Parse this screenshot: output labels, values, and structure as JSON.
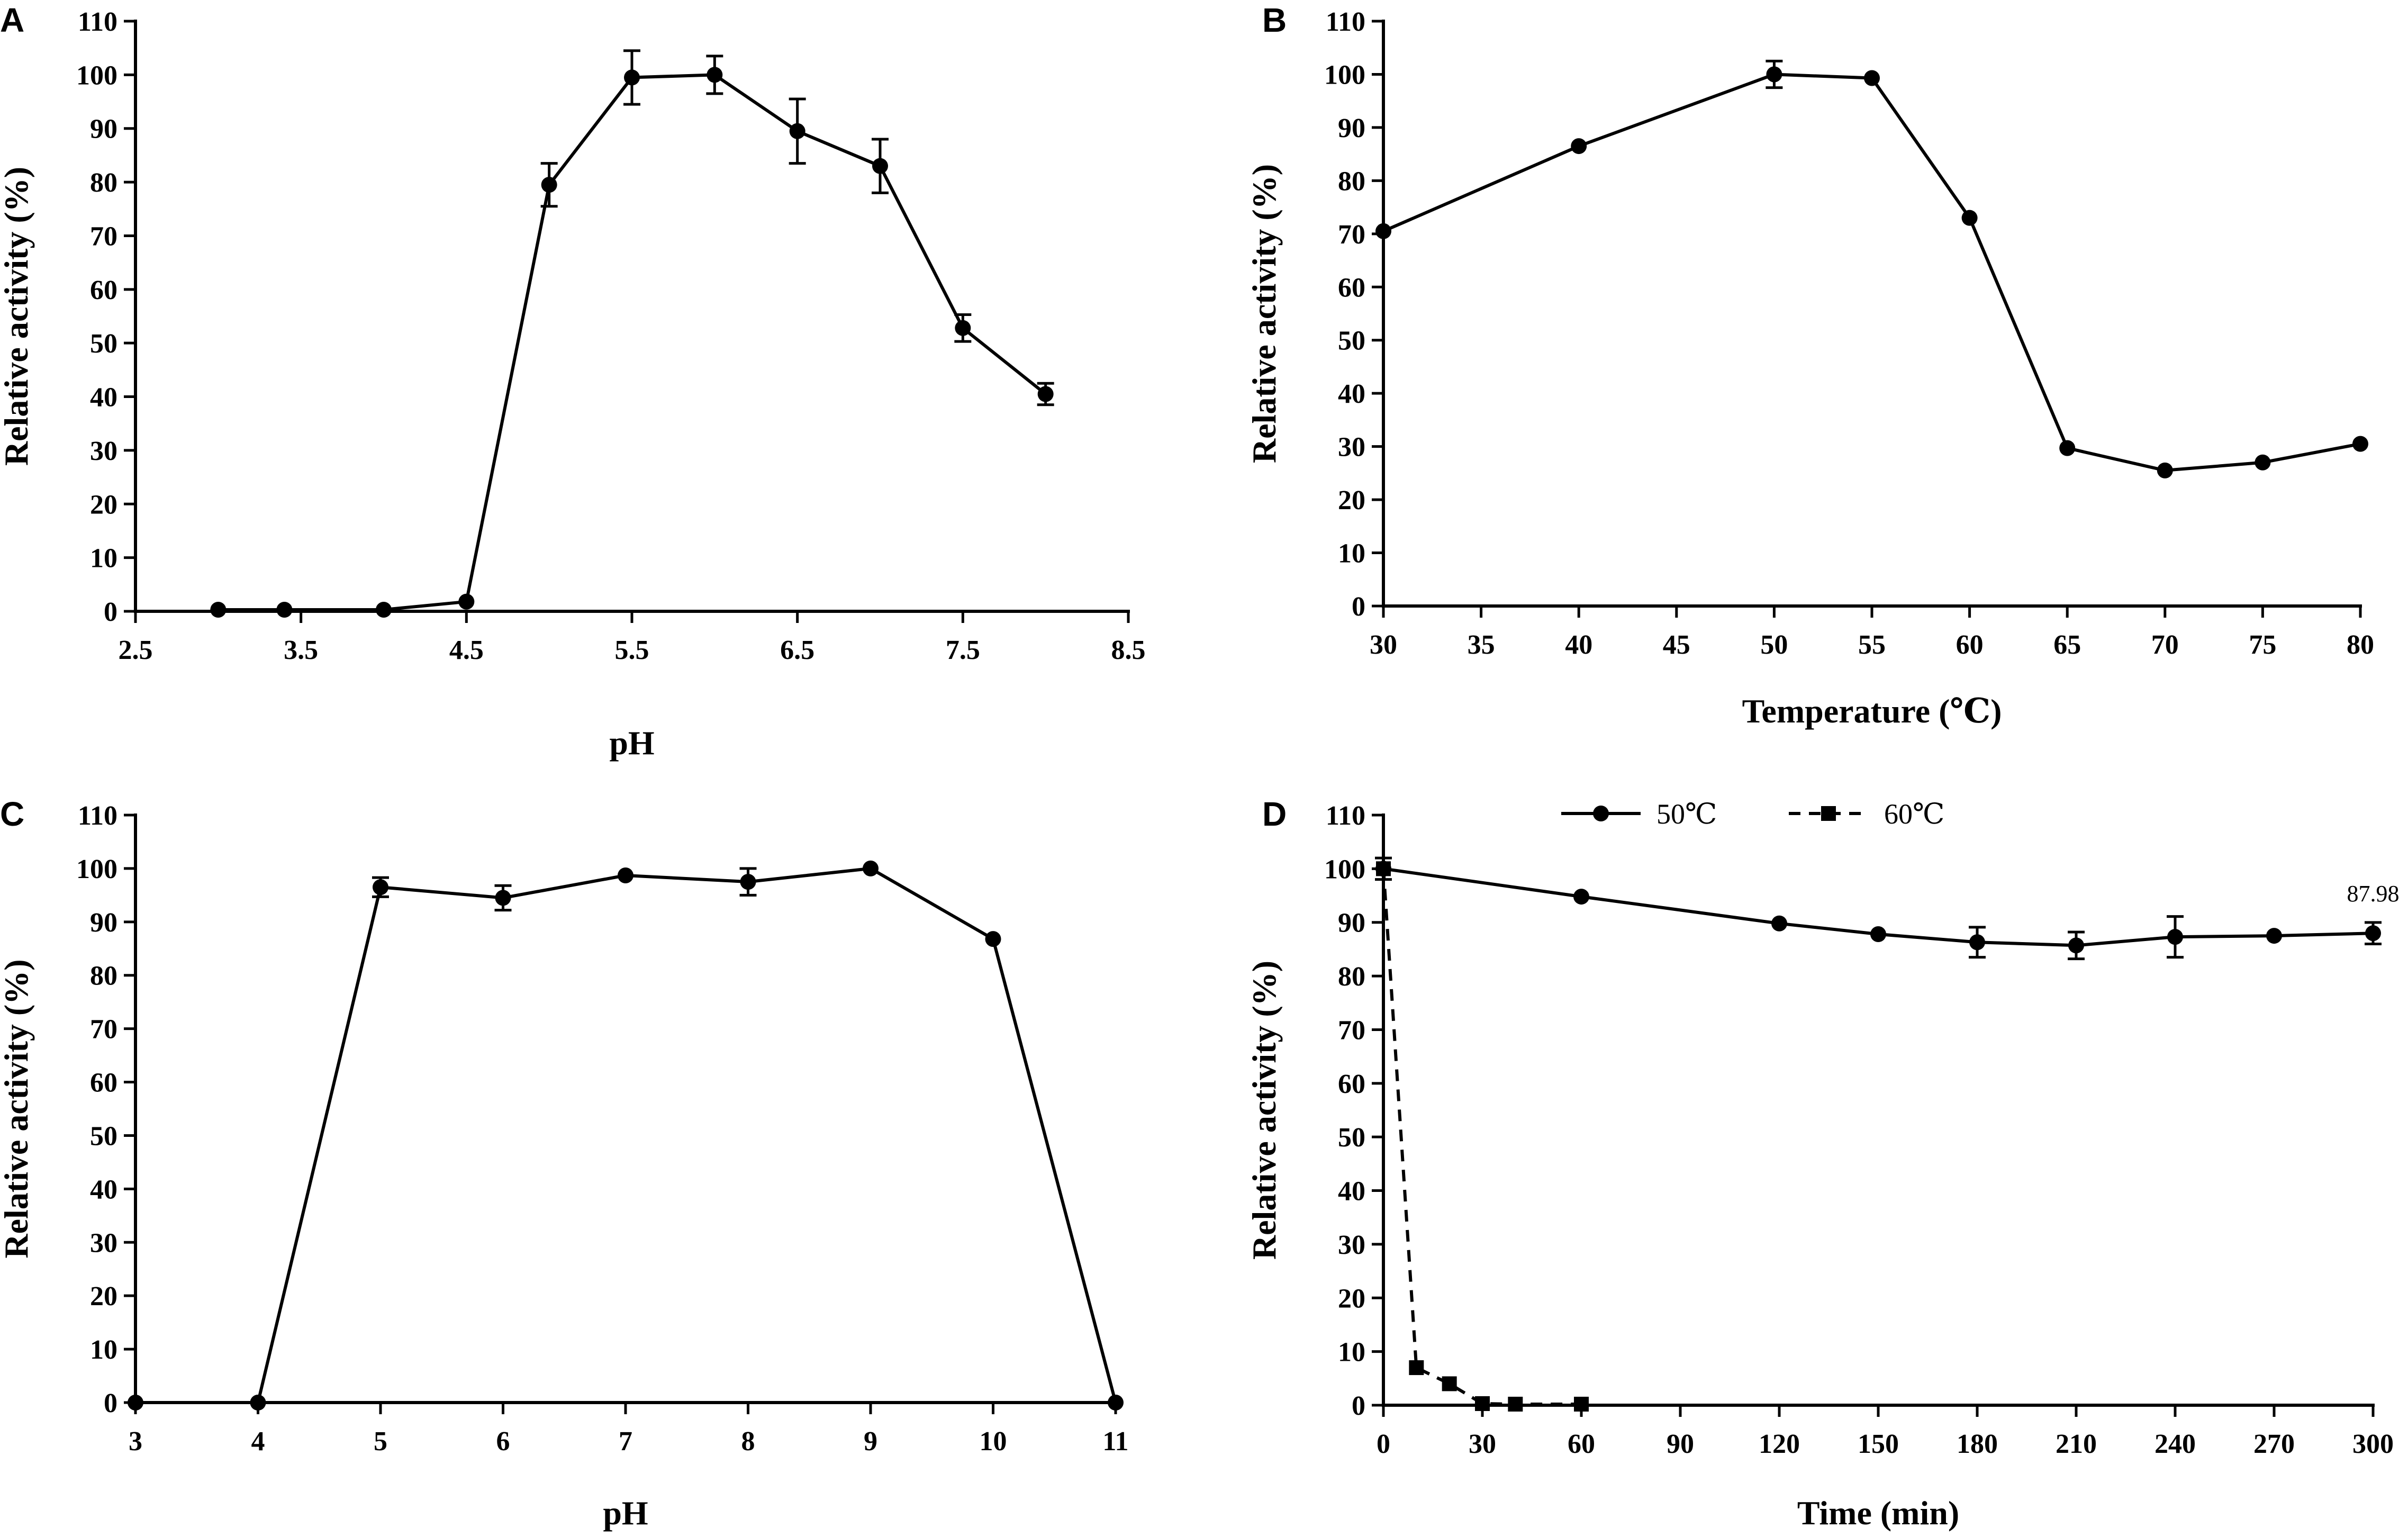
{
  "chart_data": [
    {
      "panel": "A",
      "type": "line",
      "xlabel": "pH",
      "ylabel": "Relative  activity (%)",
      "xlim": [
        2.5,
        8.5
      ],
      "ylim": [
        0,
        110
      ],
      "xticks": [
        2.5,
        3.5,
        4.5,
        5.5,
        6.5,
        7.5,
        8.5
      ],
      "xtick_labels": [
        "2.5",
        "3.5",
        "4.5",
        "5.5",
        "6.5",
        "7.5",
        "8.5"
      ],
      "yticks": [
        0,
        10,
        20,
        30,
        40,
        50,
        60,
        70,
        80,
        90,
        100,
        110
      ],
      "series": [
        {
          "name": "activity",
          "marker": "circle",
          "dashed": false,
          "x": [
            3.0,
            3.4,
            4.0,
            4.5,
            5.0,
            5.5,
            6.0,
            6.5,
            7.0,
            7.5,
            8.0
          ],
          "y": [
            0.3,
            0.3,
            0.3,
            1.8,
            79.5,
            99.5,
            100.0,
            89.5,
            83.0,
            52.8,
            40.5
          ],
          "err": [
            0,
            0,
            0,
            0,
            4,
            5,
            3.5,
            6,
            5,
            2.5,
            2
          ]
        }
      ]
    },
    {
      "panel": "B",
      "type": "line",
      "xlabel": "Temperature (℃)",
      "ylabel": "Relative  activity (%)",
      "xlim": [
        30,
        80
      ],
      "ylim": [
        0,
        110
      ],
      "xticks": [
        30,
        35,
        40,
        45,
        50,
        55,
        60,
        65,
        70,
        75,
        80
      ],
      "xtick_labels": [
        "30",
        "35",
        "40",
        "45",
        "50",
        "55",
        "60",
        "65",
        "70",
        "75",
        "80"
      ],
      "yticks": [
        0,
        10,
        20,
        30,
        40,
        50,
        60,
        70,
        80,
        90,
        100,
        110
      ],
      "series": [
        {
          "name": "activity",
          "marker": "circle",
          "dashed": false,
          "x": [
            30,
            40,
            50,
            55,
            60,
            65,
            70,
            75,
            80
          ],
          "y": [
            70.5,
            86.5,
            100.0,
            99.3,
            73.0,
            29.7,
            25.5,
            27.0,
            30.5
          ],
          "err": [
            0,
            0,
            2.5,
            0,
            0,
            0,
            0,
            0,
            0
          ]
        }
      ]
    },
    {
      "panel": "C",
      "type": "line",
      "xlabel": "pH",
      "ylabel": "Relative  activity (%)",
      "xlim": [
        3,
        11
      ],
      "ylim": [
        0,
        110
      ],
      "xticks": [
        3,
        4,
        5,
        6,
        7,
        8,
        9,
        10,
        11
      ],
      "xtick_labels": [
        "3",
        "4",
        "5",
        "6",
        "7",
        "8",
        "9",
        "10",
        "11"
      ],
      "yticks": [
        0,
        10,
        20,
        30,
        40,
        50,
        60,
        70,
        80,
        90,
        100,
        110
      ],
      "series": [
        {
          "name": "activity",
          "marker": "circle",
          "dashed": false,
          "x": [
            3,
            4,
            5,
            6,
            7,
            8,
            9,
            10,
            11
          ],
          "y": [
            0.0,
            0.0,
            96.5,
            94.5,
            98.7,
            97.5,
            100.0,
            86.8,
            0.0
          ],
          "err": [
            0,
            0,
            1.8,
            2.3,
            0,
            2.5,
            0,
            0,
            0
          ]
        }
      ]
    },
    {
      "panel": "D",
      "type": "line",
      "xlabel": "Time (min)",
      "ylabel": "Relative  activity (%)",
      "xlim": [
        0,
        300
      ],
      "ylim": [
        0,
        110
      ],
      "xticks": [
        0,
        30,
        60,
        90,
        120,
        150,
        180,
        210,
        240,
        270,
        300
      ],
      "xtick_labels": [
        "0",
        "30",
        "60",
        "90",
        "120",
        "150",
        "180",
        "210",
        "240",
        "270",
        "300"
      ],
      "yticks": [
        0,
        10,
        20,
        30,
        40,
        50,
        60,
        70,
        80,
        90,
        100,
        110
      ],
      "annotation": {
        "text": "87.98",
        "x": 300,
        "y": 87.98
      },
      "legend": {
        "position": "top"
      },
      "series": [
        {
          "name": "50℃",
          "marker": "circle",
          "dashed": false,
          "x": [
            0,
            60,
            120,
            150,
            180,
            210,
            240,
            270,
            300
          ],
          "y": [
            100.0,
            94.8,
            89.8,
            87.8,
            86.3,
            85.7,
            87.3,
            87.5,
            87.98
          ],
          "err": [
            0,
            0,
            0,
            0,
            2.8,
            2.5,
            3.8,
            0,
            2
          ]
        },
        {
          "name": "60℃",
          "marker": "square",
          "dashed": true,
          "x": [
            0,
            10,
            20,
            30,
            40,
            60
          ],
          "y": [
            100.0,
            7.0,
            4.0,
            0.3,
            0.2,
            0.2
          ],
          "err": [
            2,
            0,
            0,
            0,
            0,
            0
          ]
        }
      ]
    }
  ]
}
